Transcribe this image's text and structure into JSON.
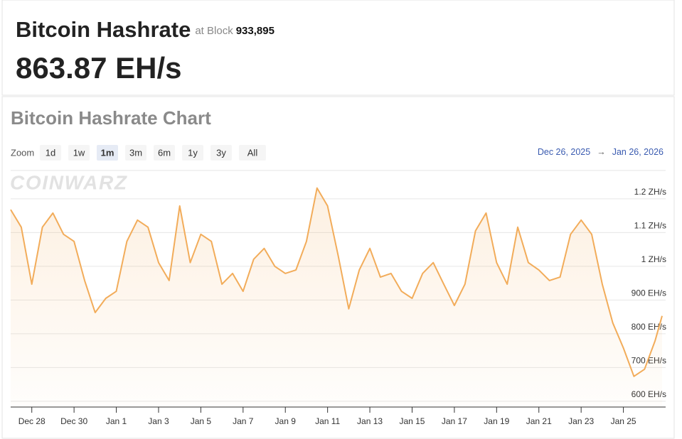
{
  "header": {
    "title": "Bitcoin Hashrate",
    "block_label": "at Block",
    "block": "933,895",
    "hashrate": "863.87 EH/s"
  },
  "chart_data": {
    "type": "line",
    "title": "Bitcoin Hashrate Chart",
    "zoom": {
      "label": "Zoom",
      "options": [
        "1d",
        "1w",
        "1m",
        "3m",
        "6m",
        "1y",
        "3y",
        "All"
      ],
      "active": 2
    },
    "range": {
      "from": "Dec 26, 2025",
      "arrow": "→",
      "to": "Jan 26, 2026"
    },
    "watermark": "COINWARZ",
    "x": [
      "2025-12-27T00:00",
      "2025-12-27T12:00",
      "2025-12-28T00:00",
      "2025-12-28T12:00",
      "2025-12-29T00:00",
      "2025-12-29T12:00",
      "2025-12-30T00:00",
      "2025-12-30T12:00",
      "2025-12-31T00:00",
      "2025-12-31T12:00",
      "2026-01-01T00:00",
      "2026-01-01T12:00",
      "2026-01-02T00:00",
      "2026-01-02T12:00",
      "2026-01-03T00:00",
      "2026-01-03T12:00",
      "2026-01-04T00:00",
      "2026-01-04T12:00",
      "2026-01-05T00:00",
      "2026-01-05T12:00",
      "2026-01-06T00:00",
      "2026-01-06T12:00",
      "2026-01-07T00:00",
      "2026-01-07T12:00",
      "2026-01-08T00:00",
      "2026-01-08T12:00",
      "2026-01-09T00:00",
      "2026-01-09T12:00",
      "2026-01-10T00:00",
      "2026-01-10T12:00",
      "2026-01-11T00:00",
      "2026-01-11T12:00",
      "2026-01-12T00:00",
      "2026-01-12T12:00",
      "2026-01-13T00:00",
      "2026-01-13T12:00",
      "2026-01-14T00:00",
      "2026-01-14T12:00",
      "2026-01-15T00:00",
      "2026-01-15T12:00",
      "2026-01-16T00:00",
      "2026-01-16T12:00",
      "2026-01-17T00:00",
      "2026-01-17T12:00",
      "2026-01-18T00:00",
      "2026-01-18T12:00",
      "2026-01-19T00:00",
      "2026-01-19T12:00",
      "2026-01-20T00:00",
      "2026-01-20T12:00",
      "2026-01-21T00:00",
      "2026-01-21T12:00",
      "2026-01-22T00:00",
      "2026-01-22T12:00",
      "2026-01-23T00:00",
      "2026-01-23T12:00",
      "2026-01-24T00:00",
      "2026-01-24T12:00",
      "2026-01-25T00:00",
      "2026-01-25T12:00",
      "2026-01-26T00:00",
      "2026-01-26T12:00",
      "2026-01-26T20:00"
    ],
    "values": [
      1168,
      1116,
      947,
      1116,
      1158,
      1095,
      1074,
      958,
      863,
      905,
      926,
      1074,
      1137,
      1116,
      1011,
      958,
      1179,
      1011,
      1095,
      1074,
      947,
      979,
      926,
      1021,
      1053,
      1000,
      979,
      989,
      1074,
      1232,
      1179,
      1032,
      874,
      989,
      1053,
      968,
      979,
      926,
      905,
      979,
      1011,
      947,
      884,
      947,
      1105,
      1158,
      1011,
      947,
      1116,
      1011,
      989,
      958,
      968,
      1095,
      1137,
      1095,
      947,
      832,
      758,
      674,
      695,
      779,
      853
    ],
    "color": "#f2ac5a",
    "xlim": [
      "2025-12-27T00:00",
      "2026-01-27T00:00"
    ],
    "xticks": [
      {
        "value": "2025-12-28T00:00",
        "label": "Dec 28"
      },
      {
        "value": "2025-12-30T00:00",
        "label": "Dec 30"
      },
      {
        "value": "2026-01-01T00:00",
        "label": "Jan 1"
      },
      {
        "value": "2026-01-03T00:00",
        "label": "Jan 3"
      },
      {
        "value": "2026-01-05T00:00",
        "label": "Jan 5"
      },
      {
        "value": "2026-01-07T00:00",
        "label": "Jan 7"
      },
      {
        "value": "2026-01-09T00:00",
        "label": "Jan 9"
      },
      {
        "value": "2026-01-11T00:00",
        "label": "Jan 11"
      },
      {
        "value": "2026-01-13T00:00",
        "label": "Jan 13"
      },
      {
        "value": "2026-01-15T00:00",
        "label": "Jan 15"
      },
      {
        "value": "2026-01-17T00:00",
        "label": "Jan 17"
      },
      {
        "value": "2026-01-19T00:00",
        "label": "Jan 19"
      },
      {
        "value": "2026-01-21T00:00",
        "label": "Jan 21"
      },
      {
        "value": "2026-01-23T00:00",
        "label": "Jan 23"
      },
      {
        "value": "2026-01-25T00:00",
        "label": "Jan 25"
      }
    ],
    "ylim": [
      583,
      1284
    ],
    "yticks": [
      {
        "value": 600,
        "label": "600 EH/s"
      },
      {
        "value": 700,
        "label": "700 EH/s"
      },
      {
        "value": 800,
        "label": "800 EH/s"
      },
      {
        "value": 900,
        "label": "900 EH/s"
      },
      {
        "value": 1000,
        "label": "1 ZH/s"
      },
      {
        "value": 1100,
        "label": "1.1 ZH/s"
      },
      {
        "value": 1200,
        "label": "1.2 ZH/s"
      }
    ],
    "grid": true
  }
}
